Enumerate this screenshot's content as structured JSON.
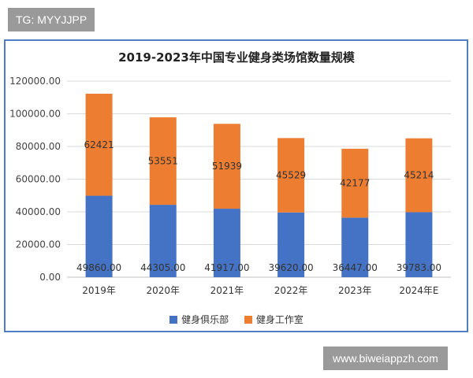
{
  "tag_badge": "TG: MYYJJPP",
  "url_badge": "www.biweiappzh.com",
  "colors": {
    "club": "#4472c4",
    "studio": "#ed7d31",
    "frame": "#4f7fc2",
    "grid": "#d9d9d9"
  },
  "chart_data": {
    "type": "bar",
    "stacked": true,
    "title": "2019-2023年中国专业健身类场馆数量规模",
    "categories": [
      "2019年",
      "2020年",
      "2021年",
      "2022年",
      "2023年",
      "2024年E"
    ],
    "series": [
      {
        "name": "健身俱乐部",
        "values": [
          49860,
          44305,
          41917,
          39620,
          36447,
          39783
        ],
        "labels": [
          "49860.00",
          "44305.00",
          "41917.00",
          "39620.00",
          "36447.00",
          "39783.00"
        ]
      },
      {
        "name": "健身工作室",
        "values": [
          62421,
          53551,
          51939,
          45529,
          42177,
          45214
        ],
        "labels": [
          "62421",
          "53551",
          "51939",
          "45529",
          "42177",
          "45214"
        ]
      }
    ],
    "ylim": [
      0,
      120000
    ],
    "yticks": [
      "0.00",
      "20000.00",
      "40000.00",
      "60000.00",
      "80000.00",
      "100000.00",
      "120000.00"
    ],
    "grid": true,
    "legend_position": "bottom"
  }
}
